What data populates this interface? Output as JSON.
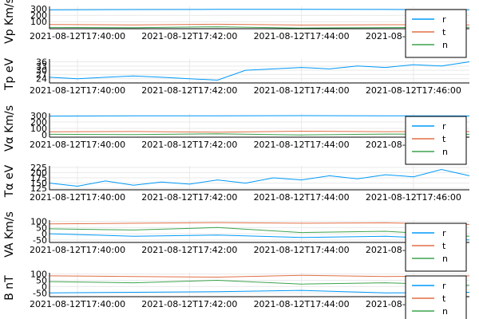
{
  "colors": {
    "c1": "#009AFA",
    "c2": "#E26F46",
    "c3": "#3DA44D"
  },
  "chart_data": [
    {
      "type": "line",
      "ylabel": "Vp Km/s",
      "xlim": [
        "2021-08-12T17:39:30",
        "2021-08-12T17:47:00"
      ],
      "xticks": [
        "2021-08-12T17:40:00",
        "2021-08-12T17:42:00",
        "2021-08-12T17:44:00",
        "2021-08-12T17:46:00"
      ],
      "yticks": [
        100,
        200,
        300
      ],
      "ylim": [
        -10,
        340
      ],
      "legend": "bottom-right",
      "series": [
        {
          "name": "r",
          "color": "#009AFA",
          "x": [
            "2021-08-12T17:39:30",
            "2021-08-12T17:41:00",
            "2021-08-12T17:42:30",
            "2021-08-12T17:44:00",
            "2021-08-12T17:45:30",
            "2021-08-12T17:47:00"
          ],
          "values": [
            285,
            290,
            292,
            294,
            291,
            288
          ]
        },
        {
          "name": "t",
          "color": "#E26F46",
          "x": [
            "2021-08-12T17:39:30",
            "2021-08-12T17:41:00",
            "2021-08-12T17:42:30",
            "2021-08-12T17:44:00",
            "2021-08-12T17:45:30",
            "2021-08-12T17:47:00"
          ],
          "values": [
            55,
            50,
            60,
            48,
            52,
            50
          ]
        },
        {
          "name": "n",
          "color": "#3DA44D",
          "x": [
            "2021-08-12T17:39:30",
            "2021-08-12T17:41:00",
            "2021-08-12T17:42:30",
            "2021-08-12T17:44:00",
            "2021-08-12T17:45:30",
            "2021-08-12T17:47:00"
          ],
          "values": [
            10,
            5,
            20,
            0,
            8,
            12
          ]
        }
      ]
    },
    {
      "type": "line",
      "ylabel": "Tp eV",
      "xlim": [
        "2021-08-12T17:39:30",
        "2021-08-12T17:47:00"
      ],
      "xticks": [
        "2021-08-12T17:40:00",
        "2021-08-12T17:42:00",
        "2021-08-12T17:44:00",
        "2021-08-12T17:46:00"
      ],
      "yticks": [
        24,
        27,
        30,
        33,
        36
      ],
      "ylim": [
        21,
        38
      ],
      "legend": "none",
      "series": [
        {
          "name": "",
          "color": "#009AFA",
          "x": [
            "2021-08-12T17:39:30",
            "2021-08-12T17:40:00",
            "2021-08-12T17:40:30",
            "2021-08-12T17:41:00",
            "2021-08-12T17:41:30",
            "2021-08-12T17:42:00",
            "2021-08-12T17:42:30",
            "2021-08-12T17:43:00",
            "2021-08-12T17:43:30",
            "2021-08-12T17:44:00",
            "2021-08-12T17:44:30",
            "2021-08-12T17:45:00",
            "2021-08-12T17:45:30",
            "2021-08-12T17:46:00",
            "2021-08-12T17:46:30",
            "2021-08-12T17:47:00"
          ],
          "values": [
            25,
            24,
            25,
            26,
            25,
            24,
            23,
            30,
            31,
            32,
            31,
            33,
            32,
            34,
            33,
            36
          ]
        }
      ]
    },
    {
      "type": "line",
      "ylabel": "Vα Km/s",
      "xlim": [
        "2021-08-12T17:39:30",
        "2021-08-12T17:47:00"
      ],
      "xticks": [
        "2021-08-12T17:40:00",
        "2021-08-12T17:42:00",
        "2021-08-12T17:44:00",
        "2021-08-12T17:46:00"
      ],
      "yticks": [
        0,
        100,
        200,
        300
      ],
      "ylim": [
        -40,
        340
      ],
      "legend": "bottom-right",
      "series": [
        {
          "name": "r",
          "color": "#009AFA",
          "x": [
            "2021-08-12T17:39:30",
            "2021-08-12T17:41:00",
            "2021-08-12T17:42:30",
            "2021-08-12T17:44:00",
            "2021-08-12T17:45:30",
            "2021-08-12T17:47:00"
          ],
          "values": [
            295,
            298,
            300,
            302,
            299,
            297
          ]
        },
        {
          "name": "t",
          "color": "#E26F46",
          "x": [
            "2021-08-12T17:39:30",
            "2021-08-12T17:41:00",
            "2021-08-12T17:42:30",
            "2021-08-12T17:44:00",
            "2021-08-12T17:45:30",
            "2021-08-12T17:47:00"
          ],
          "values": [
            45,
            50,
            40,
            55,
            48,
            50
          ]
        },
        {
          "name": "n",
          "color": "#3DA44D",
          "x": [
            "2021-08-12T17:39:30",
            "2021-08-12T17:41:00",
            "2021-08-12T17:42:30",
            "2021-08-12T17:44:00",
            "2021-08-12T17:45:30",
            "2021-08-12T17:47:00"
          ],
          "values": [
            5,
            0,
            15,
            -5,
            10,
            5
          ]
        }
      ]
    },
    {
      "type": "line",
      "ylabel": "Tα eV",
      "xlim": [
        "2021-08-12T17:39:30",
        "2021-08-12T17:47:00"
      ],
      "xticks": [
        "2021-08-12T17:40:00",
        "2021-08-12T17:42:00",
        "2021-08-12T17:44:00",
        "2021-08-12T17:46:00"
      ],
      "yticks": [
        125,
        150,
        175,
        200,
        225
      ],
      "ylim": [
        118,
        232
      ],
      "legend": "none",
      "series": [
        {
          "name": "",
          "color": "#009AFA",
          "x": [
            "2021-08-12T17:39:30",
            "2021-08-12T17:40:00",
            "2021-08-12T17:40:30",
            "2021-08-12T17:41:00",
            "2021-08-12T17:41:30",
            "2021-08-12T17:42:00",
            "2021-08-12T17:42:30",
            "2021-08-12T17:43:00",
            "2021-08-12T17:43:30",
            "2021-08-12T17:44:00",
            "2021-08-12T17:44:30",
            "2021-08-12T17:45:00",
            "2021-08-12T17:45:30",
            "2021-08-12T17:46:00",
            "2021-08-12T17:46:30",
            "2021-08-12T17:47:00"
          ],
          "values": [
            150,
            135,
            160,
            140,
            155,
            145,
            165,
            150,
            175,
            165,
            185,
            170,
            190,
            180,
            215,
            185
          ]
        }
      ]
    },
    {
      "type": "line",
      "ylabel": "VA Km/s",
      "xlim": [
        "2021-08-12T17:39:30",
        "2021-08-12T17:47:00"
      ],
      "xticks": [
        "2021-08-12T17:40:00",
        "2021-08-12T17:42:00",
        "2021-08-12T17:44:00",
        "2021-08-12T17:46:00"
      ],
      "yticks": [
        -50,
        0,
        50,
        100
      ],
      "ylim": [
        -70,
        110
      ],
      "legend": "bottom-right",
      "series": [
        {
          "name": "r",
          "color": "#009AFA",
          "x": [
            "2021-08-12T17:39:30",
            "2021-08-12T17:41:00",
            "2021-08-12T17:42:30",
            "2021-08-12T17:44:00",
            "2021-08-12T17:45:30",
            "2021-08-12T17:47:00"
          ],
          "values": [
            0,
            -20,
            -10,
            -30,
            -20,
            -50
          ]
        },
        {
          "name": "t",
          "color": "#E26F46",
          "x": [
            "2021-08-12T17:39:30",
            "2021-08-12T17:41:00",
            "2021-08-12T17:42:30",
            "2021-08-12T17:44:00",
            "2021-08-12T17:45:30",
            "2021-08-12T17:47:00"
          ],
          "values": [
            80,
            85,
            90,
            85,
            88,
            75
          ]
        },
        {
          "name": "n",
          "color": "#3DA44D",
          "x": [
            "2021-08-12T17:39:30",
            "2021-08-12T17:41:00",
            "2021-08-12T17:42:30",
            "2021-08-12T17:44:00",
            "2021-08-12T17:45:30",
            "2021-08-12T17:47:00"
          ],
          "values": [
            40,
            30,
            50,
            10,
            20,
            -20
          ]
        }
      ]
    },
    {
      "type": "line",
      "ylabel": "B nT",
      "xlim": [
        "2021-08-12T17:39:30",
        "2021-08-12T17:47:00"
      ],
      "xticks": [
        "2021-08-12T17:40:00",
        "2021-08-12T17:42:00",
        "2021-08-12T17:44:00",
        "2021-08-12T17:46:00"
      ],
      "yticks": [
        -50,
        0,
        50,
        100
      ],
      "ylim": [
        -80,
        110
      ],
      "legend": "bottom-right",
      "series": [
        {
          "name": "r",
          "color": "#009AFA",
          "x": [
            "2021-08-12T17:39:30",
            "2021-08-12T17:41:00",
            "2021-08-12T17:42:30",
            "2021-08-12T17:44:00",
            "2021-08-12T17:45:30",
            "2021-08-12T17:47:00"
          ],
          "values": [
            -50,
            -45,
            -40,
            -30,
            -50,
            -45
          ]
        },
        {
          "name": "t",
          "color": "#E26F46",
          "x": [
            "2021-08-12T17:39:30",
            "2021-08-12T17:41:00",
            "2021-08-12T17:42:30",
            "2021-08-12T17:44:00",
            "2021-08-12T17:45:30",
            "2021-08-12T17:47:00"
          ],
          "values": [
            85,
            80,
            75,
            90,
            80,
            85
          ]
        },
        {
          "name": "n",
          "color": "#3DA44D",
          "x": [
            "2021-08-12T17:39:30",
            "2021-08-12T17:41:00",
            "2021-08-12T17:42:30",
            "2021-08-12T17:44:00",
            "2021-08-12T17:45:30",
            "2021-08-12T17:47:00"
          ],
          "values": [
            40,
            30,
            50,
            20,
            30,
            10
          ]
        }
      ]
    }
  ]
}
